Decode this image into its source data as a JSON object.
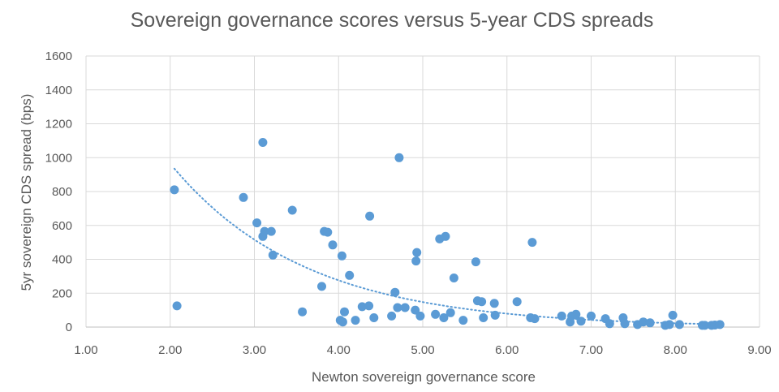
{
  "chart_data": {
    "type": "scatter",
    "title": "Sovereign governance scores versus 5-year CDS spreads",
    "xlabel": "Newton sovereign governance score",
    "ylabel": "5yr sovereign CDS spread (bps)",
    "xlim": [
      1.0,
      9.0
    ],
    "ylim": [
      0,
      1600
    ],
    "x_ticks": [
      "1.00",
      "2.00",
      "3.00",
      "4.00",
      "5.00",
      "6.00",
      "7.00",
      "8.00",
      "9.00"
    ],
    "y_ticks": [
      "0",
      "200",
      "400",
      "600",
      "800",
      "1000",
      "1200",
      "1400",
      "1600"
    ],
    "grid": "vertical and horizontal",
    "legend": "none",
    "marker_color": "#5b9bd5",
    "trendline": {
      "kind": "exponential",
      "style": "dotted",
      "color": "#5b9bd5",
      "x_range": [
        2.05,
        8.55
      ],
      "points": [
        [
          2.05,
          935
        ],
        [
          3.0,
          600
        ],
        [
          4.0,
          360
        ],
        [
          5.0,
          190
        ],
        [
          6.0,
          95
        ],
        [
          7.0,
          52
        ],
        [
          8.0,
          25
        ],
        [
          8.55,
          16
        ]
      ]
    },
    "series": [
      {
        "points": [
          [
            2.05,
            810
          ],
          [
            2.08,
            125
          ],
          [
            2.87,
            765
          ],
          [
            3.03,
            615
          ],
          [
            3.1,
            1090
          ],
          [
            3.1,
            535
          ],
          [
            3.12,
            565
          ],
          [
            3.2,
            565
          ],
          [
            3.22,
            425
          ],
          [
            3.45,
            690
          ],
          [
            3.57,
            90
          ],
          [
            3.8,
            240
          ],
          [
            3.83,
            565
          ],
          [
            3.87,
            560
          ],
          [
            3.93,
            485
          ],
          [
            4.02,
            40
          ],
          [
            4.04,
            420
          ],
          [
            4.05,
            30
          ],
          [
            4.07,
            90
          ],
          [
            4.13,
            305
          ],
          [
            4.2,
            40
          ],
          [
            4.28,
            120
          ],
          [
            4.36,
            125
          ],
          [
            4.37,
            655
          ],
          [
            4.42,
            55
          ],
          [
            4.63,
            65
          ],
          [
            4.67,
            205
          ],
          [
            4.7,
            115
          ],
          [
            4.72,
            1000
          ],
          [
            4.79,
            115
          ],
          [
            4.91,
            100
          ],
          [
            4.92,
            390
          ],
          [
            4.93,
            440
          ],
          [
            4.97,
            65
          ],
          [
            5.15,
            75
          ],
          [
            5.2,
            520
          ],
          [
            5.25,
            55
          ],
          [
            5.27,
            535
          ],
          [
            5.33,
            85
          ],
          [
            5.37,
            290
          ],
          [
            5.48,
            40
          ],
          [
            5.63,
            385
          ],
          [
            5.65,
            155
          ],
          [
            5.7,
            150
          ],
          [
            5.72,
            55
          ],
          [
            5.85,
            140
          ],
          [
            5.86,
            70
          ],
          [
            6.12,
            150
          ],
          [
            6.28,
            55
          ],
          [
            6.3,
            500
          ],
          [
            6.33,
            50
          ],
          [
            6.65,
            65
          ],
          [
            6.75,
            30
          ],
          [
            6.77,
            65
          ],
          [
            6.82,
            75
          ],
          [
            6.88,
            35
          ],
          [
            7.0,
            65
          ],
          [
            7.17,
            50
          ],
          [
            7.22,
            20
          ],
          [
            7.38,
            55
          ],
          [
            7.4,
            20
          ],
          [
            7.55,
            15
          ],
          [
            7.62,
            30
          ],
          [
            7.7,
            25
          ],
          [
            7.88,
            10
          ],
          [
            7.93,
            15
          ],
          [
            7.97,
            70
          ],
          [
            8.05,
            15
          ],
          [
            8.32,
            10
          ],
          [
            8.35,
            10
          ],
          [
            8.43,
            10
          ],
          [
            8.47,
            12
          ],
          [
            8.53,
            15
          ]
        ]
      }
    ]
  }
}
